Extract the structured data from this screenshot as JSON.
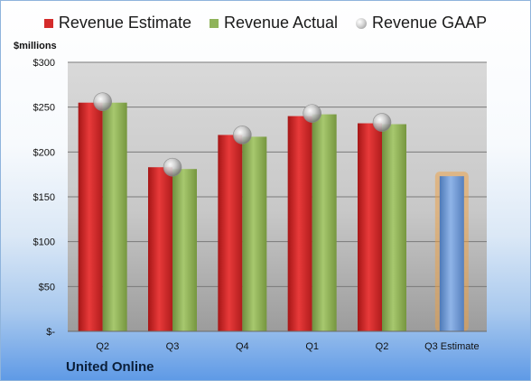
{
  "chart_data": {
    "type": "bar",
    "categories": [
      "Q2",
      "Q3",
      "Q4",
      "Q1",
      "Q2",
      "Q3 Estimate"
    ],
    "series": [
      {
        "name": "Revenue Estimate",
        "values": [
          255,
          183,
          219,
          240,
          232,
          null
        ],
        "color": "#d42b2b"
      },
      {
        "name": "Revenue Actual",
        "values": [
          255,
          181,
          217,
          242,
          231,
          null
        ],
        "color": "#8fb35a"
      },
      {
        "name": "Revenue GAAP",
        "values": [
          256,
          183,
          219,
          243,
          233,
          null
        ],
        "color": "#b0b0b0"
      }
    ],
    "projection": {
      "category": "Q3 Estimate",
      "value": 173,
      "color": "#6f9ad6",
      "glow": "#f0a040"
    },
    "ylabel": "$millions",
    "ylim": [
      0,
      300
    ],
    "yticks": [
      0,
      50,
      100,
      150,
      200,
      250,
      300
    ],
    "ytick_labels": [
      "$-",
      "$50",
      "$100",
      "$150",
      "$200",
      "$250",
      "$300"
    ],
    "grid": true,
    "legend": "top"
  },
  "company": "United Online"
}
